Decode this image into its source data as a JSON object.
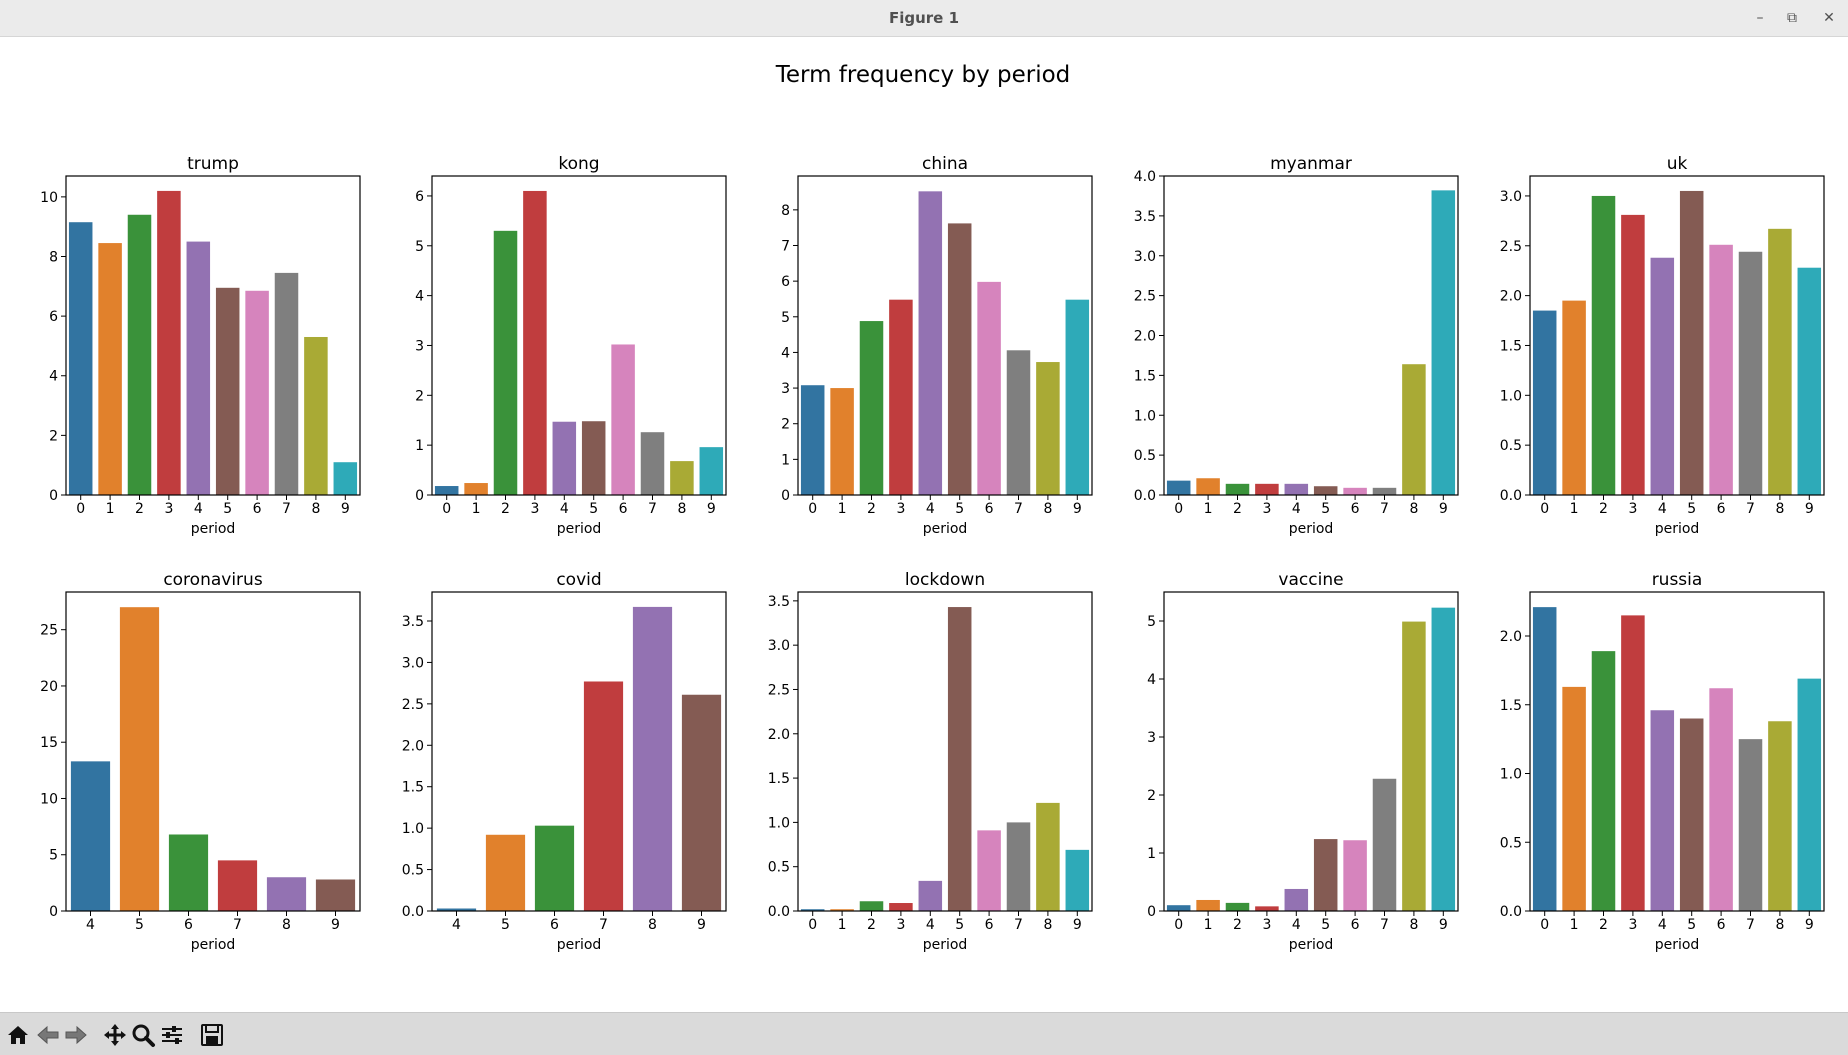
{
  "window": {
    "title": "Figure 1",
    "minimize_glyph": "–",
    "restore_glyph": "⧉",
    "close_glyph": "✕"
  },
  "toolbar": {
    "buttons": [
      {
        "name": "home-icon",
        "label": "Home"
      },
      {
        "name": "back-icon",
        "label": "Back"
      },
      {
        "name": "forward-icon",
        "label": "Forward"
      },
      {
        "name": "pan-icon",
        "label": "Pan"
      },
      {
        "name": "zoom-icon",
        "label": "Zoom"
      },
      {
        "name": "configure-subplots-icon",
        "label": "Configure subplots"
      },
      {
        "name": "save-icon",
        "label": "Save"
      }
    ],
    "coordinates": ""
  },
  "chart_data": {
    "suptitle": "Term frequency by period",
    "palette": [
      "#3274a1",
      "#e1812c",
      "#3a923a",
      "#c03d3e",
      "#9372b2",
      "#845b53",
      "#d684bd",
      "#7f7f7f",
      "#a9aa35",
      "#2eaab8"
    ],
    "panels": [
      {
        "type": "bar",
        "title": "trump",
        "xlabel": "period",
        "categories": [
          "0",
          "1",
          "2",
          "3",
          "4",
          "5",
          "6",
          "7",
          "8",
          "9"
        ],
        "values": [
          9.15,
          8.45,
          9.4,
          10.2,
          8.5,
          6.95,
          6.85,
          7.45,
          5.3,
          1.1
        ],
        "ylim": [
          0,
          10.7
        ],
        "yticks": [
          0,
          2,
          4,
          6,
          8,
          10
        ],
        "ytick_labels": [
          "0",
          "2",
          "4",
          "6",
          "8",
          "10"
        ]
      },
      {
        "type": "bar",
        "title": "kong",
        "xlabel": "period",
        "categories": [
          "0",
          "1",
          "2",
          "3",
          "4",
          "5",
          "6",
          "7",
          "8",
          "9"
        ],
        "values": [
          0.18,
          0.24,
          5.3,
          6.1,
          1.47,
          1.48,
          3.02,
          1.26,
          0.68,
          0.96
        ],
        "ylim": [
          0,
          6.4
        ],
        "yticks": [
          0,
          1,
          2,
          3,
          4,
          5,
          6
        ],
        "ytick_labels": [
          "0",
          "1",
          "2",
          "3",
          "4",
          "5",
          "6"
        ]
      },
      {
        "type": "bar",
        "title": "china",
        "xlabel": "period",
        "categories": [
          "0",
          "1",
          "2",
          "3",
          "4",
          "5",
          "6",
          "7",
          "8",
          "9"
        ],
        "values": [
          3.08,
          3.0,
          4.88,
          5.48,
          8.52,
          7.62,
          5.98,
          4.06,
          3.73,
          5.48
        ],
        "ylim": [
          0,
          8.95
        ],
        "yticks": [
          0,
          1,
          2,
          3,
          4,
          5,
          6,
          7,
          8
        ],
        "ytick_labels": [
          "0",
          "1",
          "2",
          "3",
          "4",
          "5",
          "6",
          "7",
          "8"
        ]
      },
      {
        "type": "bar",
        "title": "myanmar",
        "xlabel": "period",
        "categories": [
          "0",
          "1",
          "2",
          "3",
          "4",
          "5",
          "6",
          "7",
          "8",
          "9"
        ],
        "values": [
          0.18,
          0.21,
          0.14,
          0.14,
          0.14,
          0.11,
          0.09,
          0.09,
          1.64,
          3.82
        ],
        "ylim": [
          0,
          4.0
        ],
        "yticks": [
          0,
          0.5,
          1.0,
          1.5,
          2.0,
          2.5,
          3.0,
          3.5,
          4.0
        ],
        "ytick_labels": [
          "0.0",
          "0.5",
          "1.0",
          "1.5",
          "2.0",
          "2.5",
          "3.0",
          "3.5",
          "4.0"
        ]
      },
      {
        "type": "bar",
        "title": "uk",
        "xlabel": "period",
        "categories": [
          "0",
          "1",
          "2",
          "3",
          "4",
          "5",
          "6",
          "7",
          "8",
          "9"
        ],
        "values": [
          1.85,
          1.95,
          3.0,
          2.81,
          2.38,
          3.05,
          2.51,
          2.44,
          2.67,
          2.28
        ],
        "ylim": [
          0,
          3.2
        ],
        "yticks": [
          0,
          0.5,
          1.0,
          1.5,
          2.0,
          2.5,
          3.0
        ],
        "ytick_labels": [
          "0.0",
          "0.5",
          "1.0",
          "1.5",
          "2.0",
          "2.5",
          "3.0"
        ]
      },
      {
        "type": "bar",
        "title": "coronavirus",
        "xlabel": "period",
        "categories": [
          "4",
          "5",
          "6",
          "7",
          "8",
          "9"
        ],
        "values": [
          13.3,
          27.0,
          6.8,
          4.5,
          3.0,
          2.8
        ],
        "ylim": [
          0,
          28.35
        ],
        "yticks": [
          0,
          5,
          10,
          15,
          20,
          25
        ],
        "ytick_labels": [
          "0",
          "5",
          "10",
          "15",
          "20",
          "25"
        ]
      },
      {
        "type": "bar",
        "title": "covid",
        "xlabel": "period",
        "categories": [
          "4",
          "5",
          "6",
          "7",
          "8",
          "9"
        ],
        "values": [
          0.03,
          0.92,
          1.03,
          2.77,
          3.67,
          2.61
        ],
        "ylim": [
          0,
          3.85
        ],
        "yticks": [
          0,
          0.5,
          1.0,
          1.5,
          2.0,
          2.5,
          3.0,
          3.5
        ],
        "ytick_labels": [
          "0.0",
          "0.5",
          "1.0",
          "1.5",
          "2.0",
          "2.5",
          "3.0",
          "3.5"
        ]
      },
      {
        "type": "bar",
        "title": "lockdown",
        "xlabel": "period",
        "categories": [
          "0",
          "1",
          "2",
          "3",
          "4",
          "5",
          "6",
          "7",
          "8",
          "9"
        ],
        "values": [
          0.02,
          0.02,
          0.11,
          0.09,
          0.34,
          3.43,
          0.91,
          1.0,
          1.22,
          0.69
        ],
        "ylim": [
          0,
          3.6
        ],
        "yticks": [
          0,
          0.5,
          1.0,
          1.5,
          2.0,
          2.5,
          3.0,
          3.5
        ],
        "ytick_labels": [
          "0.0",
          "0.5",
          "1.0",
          "1.5",
          "2.0",
          "2.5",
          "3.0",
          "3.5"
        ]
      },
      {
        "type": "bar",
        "title": "vaccine",
        "xlabel": "period",
        "categories": [
          "0",
          "1",
          "2",
          "3",
          "4",
          "5",
          "6",
          "7",
          "8",
          "9"
        ],
        "values": [
          0.1,
          0.19,
          0.14,
          0.08,
          0.38,
          1.24,
          1.22,
          2.28,
          4.99,
          5.23
        ],
        "ylim": [
          0,
          5.5
        ],
        "yticks": [
          0,
          1,
          2,
          3,
          4,
          5
        ],
        "ytick_labels": [
          "0",
          "1",
          "2",
          "3",
          "4",
          "5"
        ]
      },
      {
        "type": "bar",
        "title": "russia",
        "xlabel": "period",
        "categories": [
          "0",
          "1",
          "2",
          "3",
          "4",
          "5",
          "6",
          "7",
          "8",
          "9"
        ],
        "values": [
          2.21,
          1.63,
          1.89,
          2.15,
          1.46,
          1.4,
          1.62,
          1.25,
          1.38,
          1.69
        ],
        "ylim": [
          0,
          2.32
        ],
        "yticks": [
          0,
          0.5,
          1.0,
          1.5,
          2.0
        ],
        "ytick_labels": [
          "0.0",
          "0.5",
          "1.0",
          "1.5",
          "2.0"
        ]
      }
    ]
  }
}
